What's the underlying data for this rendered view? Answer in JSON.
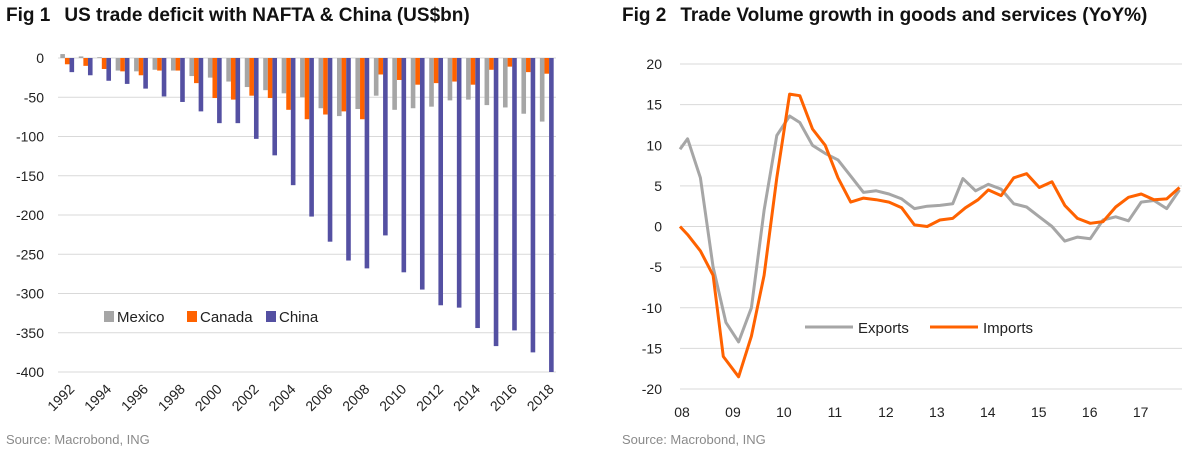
{
  "fig1": {
    "label": "Fig 1",
    "title": "US trade deficit with NAFTA & China (US$bn)",
    "source": "Source: Macrobond, ING"
  },
  "fig2": {
    "label": "Fig 2",
    "title": "Trade Volume growth in goods and services (YoY%)",
    "source": "Source: Macrobond, ING"
  },
  "colors": {
    "mexico": "#a6a6a6",
    "canada": "#ff6200",
    "china": "#5450a2",
    "exports": "#a6a6a6",
    "imports": "#ff6200",
    "grid": "#d9d9d9"
  },
  "chart_data": [
    {
      "type": "bar",
      "title": "US trade deficit with NAFTA & China (US$bn)",
      "categories": [
        "1992",
        "1993",
        "1994",
        "1995",
        "1996",
        "1997",
        "1998",
        "1999",
        "2000",
        "2001",
        "2002",
        "2003",
        "2004",
        "2005",
        "2006",
        "2007",
        "2008",
        "2009",
        "2010",
        "2011",
        "2012",
        "2013",
        "2014",
        "2015",
        "2016",
        "2017",
        "2018"
      ],
      "xtick_labels": [
        "1992",
        "1994",
        "1996",
        "1998",
        "2000",
        "2002",
        "2004",
        "2006",
        "2008",
        "2010",
        "2012",
        "2014",
        "2016",
        "2018"
      ],
      "yticks": [
        0,
        -50,
        -100,
        -150,
        -200,
        -250,
        -300,
        -350,
        -400
      ],
      "ylim": [
        -400,
        0
      ],
      "series": [
        {
          "name": "Mexico",
          "values": [
            5,
            2,
            1,
            -16,
            -17,
            -15,
            -16,
            -23,
            -25,
            -30,
            -37,
            -41,
            -45,
            -50,
            -64,
            -74,
            -65,
            -48,
            -66,
            -64,
            -62,
            -54,
            -53,
            -60,
            -63,
            -71,
            -81
          ]
        },
        {
          "name": "Canada",
          "values": [
            -8,
            -10,
            -14,
            -17,
            -22,
            -16,
            -16,
            -32,
            -51,
            -53,
            -48,
            -51,
            -66,
            -78,
            -72,
            -68,
            -78,
            -21,
            -28,
            -34,
            -32,
            -30,
            -34,
            -15,
            -11,
            -18,
            -20
          ]
        },
        {
          "name": "China",
          "values": [
            -18,
            -22,
            -29,
            -33,
            -39,
            -49,
            -56,
            -68,
            -83,
            -83,
            -103,
            -124,
            -162,
            -202,
            -234,
            -258,
            -268,
            -226,
            -273,
            -295,
            -315,
            -318,
            -344,
            -367,
            -347,
            -375,
            -419
          ]
        }
      ],
      "legend": "bottom-left"
    },
    {
      "type": "line",
      "title": "Trade Volume growth in goods and services (YoY%)",
      "xtick_labels": [
        "08",
        "09",
        "10",
        "11",
        "12",
        "13",
        "14",
        "15",
        "16",
        "17"
      ],
      "x_range": [
        2008,
        2017.85
      ],
      "yticks": [
        20,
        15,
        10,
        5,
        0,
        -5,
        -10,
        -15,
        -20
      ],
      "ylim": [
        -20,
        20
      ],
      "series": [
        {
          "name": "Exports",
          "points": [
            [
              2008.0,
              9.5
            ],
            [
              2008.15,
              10.8
            ],
            [
              2008.4,
              6
            ],
            [
              2008.65,
              -5
            ],
            [
              2008.9,
              -11.8
            ],
            [
              2009.15,
              -14.2
            ],
            [
              2009.4,
              -10
            ],
            [
              2009.65,
              2
            ],
            [
              2009.9,
              11.2
            ],
            [
              2010.15,
              13.6
            ],
            [
              2010.35,
              12.8
            ],
            [
              2010.6,
              10
            ],
            [
              2010.85,
              9
            ],
            [
              2011.1,
              8.2
            ],
            [
              2011.35,
              6.2
            ],
            [
              2011.6,
              4.2
            ],
            [
              2011.85,
              4.4
            ],
            [
              2012.1,
              4
            ],
            [
              2012.35,
              3.4
            ],
            [
              2012.6,
              2.2
            ],
            [
              2012.85,
              2.5
            ],
            [
              2013.1,
              2.6
            ],
            [
              2013.35,
              2.8
            ],
            [
              2013.55,
              5.9
            ],
            [
              2013.8,
              4.4
            ],
            [
              2014.05,
              5.2
            ],
            [
              2014.3,
              4.6
            ],
            [
              2014.55,
              2.8
            ],
            [
              2014.8,
              2.4
            ],
            [
              2015.05,
              1.2
            ],
            [
              2015.3,
              0
            ],
            [
              2015.55,
              -1.8
            ],
            [
              2015.8,
              -1.3
            ],
            [
              2016.05,
              -1.5
            ],
            [
              2016.3,
              0.8
            ],
            [
              2016.55,
              1.2
            ],
            [
              2016.8,
              0.7
            ],
            [
              2017.05,
              3
            ],
            [
              2017.3,
              3.2
            ],
            [
              2017.55,
              2.2
            ],
            [
              2017.8,
              4.5
            ]
          ]
        },
        {
          "name": "Imports",
          "points": [
            [
              2008.0,
              0
            ],
            [
              2008.15,
              -1
            ],
            [
              2008.4,
              -3
            ],
            [
              2008.65,
              -6
            ],
            [
              2008.85,
              -16
            ],
            [
              2009.15,
              -18.5
            ],
            [
              2009.4,
              -13.5
            ],
            [
              2009.65,
              -6
            ],
            [
              2009.9,
              6
            ],
            [
              2010.15,
              16.3
            ],
            [
              2010.35,
              16.1
            ],
            [
              2010.6,
              12
            ],
            [
              2010.85,
              10
            ],
            [
              2011.1,
              6
            ],
            [
              2011.35,
              3
            ],
            [
              2011.6,
              3.5
            ],
            [
              2011.85,
              3.3
            ],
            [
              2012.1,
              3
            ],
            [
              2012.35,
              2.3
            ],
            [
              2012.6,
              0.2
            ],
            [
              2012.85,
              0
            ],
            [
              2013.1,
              0.8
            ],
            [
              2013.35,
              1
            ],
            [
              2013.6,
              2.3
            ],
            [
              2013.85,
              3.3
            ],
            [
              2014.05,
              4.5
            ],
            [
              2014.3,
              3.8
            ],
            [
              2014.55,
              6
            ],
            [
              2014.8,
              6.5
            ],
            [
              2015.05,
              4.8
            ],
            [
              2015.3,
              5.5
            ],
            [
              2015.55,
              2.6
            ],
            [
              2015.8,
              1
            ],
            [
              2016.05,
              0.4
            ],
            [
              2016.3,
              0.6
            ],
            [
              2016.55,
              2.4
            ],
            [
              2016.8,
              3.6
            ],
            [
              2017.05,
              4
            ],
            [
              2017.3,
              3.3
            ],
            [
              2017.55,
              3.4
            ],
            [
              2017.8,
              4.8
            ]
          ]
        }
      ],
      "legend": "bottom-center"
    }
  ]
}
